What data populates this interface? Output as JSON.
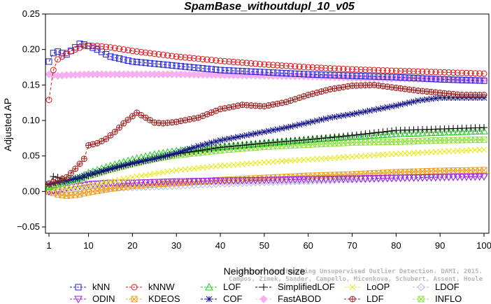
{
  "chart_data": {
    "type": "line",
    "title": "SpamBase_withoutdupl_10_v05",
    "xlabel": "Neighborhood size",
    "ylabel": "Adjusted AP",
    "xlim": [
      1,
      100
    ],
    "ylim": [
      -0.05,
      0.25
    ],
    "xticks": [
      "1",
      "10",
      "20",
      "30",
      "40",
      "50",
      "60",
      "70",
      "80",
      "90",
      "100"
    ],
    "yticks": [
      "−0.05",
      "0.00",
      "0.05",
      "0.10",
      "0.15",
      "0.20",
      "0.25"
    ],
    "grid": false,
    "legend_position": "bottom",
    "watermark_lines": [
      "Source: Benchmarking Unsupervised Outlier Detection. DAMI, 2015.",
      "Campos, Zimek, Sander, Campello, Micenkova, Schubert, Assent, Houle"
    ],
    "series": [
      {
        "name": "kNN",
        "color": "#1f1fd6",
        "marker": "square",
        "points": [
          [
            1,
            0.183
          ],
          [
            2,
            0.195
          ],
          [
            3,
            0.197
          ],
          [
            5,
            0.193
          ],
          [
            7,
            0.203
          ],
          [
            8,
            0.208
          ],
          [
            9,
            0.207
          ],
          [
            10,
            0.205
          ],
          [
            12,
            0.2
          ],
          [
            15,
            0.19
          ],
          [
            20,
            0.183
          ],
          [
            30,
            0.177
          ],
          [
            40,
            0.171
          ],
          [
            50,
            0.168
          ],
          [
            60,
            0.165
          ],
          [
            70,
            0.163
          ],
          [
            80,
            0.161
          ],
          [
            90,
            0.158
          ],
          [
            100,
            0.156
          ]
        ]
      },
      {
        "name": "kNNW",
        "color": "#e01818",
        "marker": "circle",
        "points": [
          [
            1,
            0.129
          ],
          [
            2,
            0.171
          ],
          [
            3,
            0.186
          ],
          [
            4,
            0.19
          ],
          [
            5,
            0.195
          ],
          [
            7,
            0.2
          ],
          [
            9,
            0.205
          ],
          [
            10,
            0.205
          ],
          [
            12,
            0.205
          ],
          [
            15,
            0.203
          ],
          [
            20,
            0.198
          ],
          [
            30,
            0.19
          ],
          [
            40,
            0.184
          ],
          [
            50,
            0.179
          ],
          [
            60,
            0.175
          ],
          [
            70,
            0.172
          ],
          [
            80,
            0.17
          ],
          [
            90,
            0.168
          ],
          [
            100,
            0.166
          ]
        ]
      },
      {
        "name": "LOF",
        "color": "#22cc22",
        "marker": "triangle-up",
        "points": [
          [
            1,
            0.007
          ],
          [
            3,
            0.012
          ],
          [
            5,
            0.015
          ],
          [
            8,
            0.02
          ],
          [
            10,
            0.026
          ],
          [
            15,
            0.036
          ],
          [
            20,
            0.045
          ],
          [
            25,
            0.052
          ],
          [
            30,
            0.057
          ],
          [
            40,
            0.063
          ],
          [
            50,
            0.068
          ],
          [
            60,
            0.073
          ],
          [
            70,
            0.077
          ],
          [
            80,
            0.081
          ],
          [
            90,
            0.083
          ],
          [
            100,
            0.085
          ]
        ]
      },
      {
        "name": "SimplifiedLOF",
        "color": "#000000",
        "marker": "plus",
        "points": [
          [
            1,
            0.01
          ],
          [
            2,
            0.021
          ],
          [
            3,
            0.02
          ],
          [
            5,
            0.016
          ],
          [
            8,
            0.018
          ],
          [
            10,
            0.022
          ],
          [
            15,
            0.031
          ],
          [
            20,
            0.039
          ],
          [
            25,
            0.046
          ],
          [
            30,
            0.053
          ],
          [
            40,
            0.062
          ],
          [
            50,
            0.068
          ],
          [
            60,
            0.073
          ],
          [
            70,
            0.079
          ],
          [
            80,
            0.086
          ],
          [
            90,
            0.088
          ],
          [
            100,
            0.09
          ]
        ]
      },
      {
        "name": "LoOP",
        "color": "#e8e81a",
        "marker": "x",
        "points": [
          [
            1,
            0.003
          ],
          [
            5,
            0.004
          ],
          [
            10,
            0.008
          ],
          [
            15,
            0.014
          ],
          [
            20,
            0.02
          ],
          [
            25,
            0.025
          ],
          [
            30,
            0.03
          ],
          [
            40,
            0.036
          ],
          [
            50,
            0.041
          ],
          [
            60,
            0.045
          ],
          [
            70,
            0.049
          ],
          [
            80,
            0.053
          ],
          [
            90,
            0.056
          ],
          [
            100,
            0.059
          ]
        ]
      },
      {
        "name": "LDOF",
        "color": "#b8b8e6",
        "marker": "diamond",
        "points": [
          [
            1,
            0.003
          ],
          [
            3,
            0.0
          ],
          [
            5,
            -0.002
          ],
          [
            8,
            0.002
          ],
          [
            10,
            0.004
          ],
          [
            15,
            0.005
          ],
          [
            20,
            0.006
          ],
          [
            30,
            0.008
          ],
          [
            40,
            0.011
          ],
          [
            50,
            0.013
          ],
          [
            60,
            0.015
          ],
          [
            70,
            0.017
          ],
          [
            80,
            0.019
          ],
          [
            90,
            0.021
          ],
          [
            100,
            0.022
          ]
        ]
      },
      {
        "name": "ODIN",
        "color": "#9a1ae0",
        "marker": "triangle-down",
        "points": [
          [
            1,
            0.0
          ],
          [
            3,
            0.002
          ],
          [
            5,
            0.005
          ],
          [
            8,
            0.008
          ],
          [
            10,
            0.01
          ],
          [
            15,
            0.012
          ],
          [
            20,
            0.012
          ],
          [
            30,
            0.014
          ],
          [
            40,
            0.015
          ],
          [
            50,
            0.016
          ],
          [
            60,
            0.017
          ],
          [
            70,
            0.018
          ],
          [
            80,
            0.019
          ],
          [
            90,
            0.02
          ],
          [
            100,
            0.021
          ]
        ]
      },
      {
        "name": "KDEOS",
        "color": "#f0a020",
        "marker": "square-x",
        "points": [
          [
            1,
            0.0
          ],
          [
            3,
            -0.004
          ],
          [
            5,
            -0.006
          ],
          [
            8,
            -0.004
          ],
          [
            10,
            -0.001
          ],
          [
            15,
            0.004
          ],
          [
            20,
            0.008
          ],
          [
            30,
            0.012
          ],
          [
            40,
            0.016
          ],
          [
            50,
            0.019
          ],
          [
            60,
            0.022
          ],
          [
            70,
            0.024
          ],
          [
            80,
            0.027
          ],
          [
            90,
            0.029
          ],
          [
            100,
            0.03
          ]
        ]
      },
      {
        "name": "COF",
        "color": "#10108a",
        "marker": "asterisk",
        "points": [
          [
            1,
            0.01
          ],
          [
            3,
            0.013
          ],
          [
            5,
            0.015
          ],
          [
            8,
            0.02
          ],
          [
            10,
            0.024
          ],
          [
            15,
            0.032
          ],
          [
            20,
            0.04
          ],
          [
            25,
            0.046
          ],
          [
            30,
            0.054
          ],
          [
            35,
            0.064
          ],
          [
            40,
            0.072
          ],
          [
            45,
            0.078
          ],
          [
            50,
            0.084
          ],
          [
            55,
            0.09
          ],
          [
            60,
            0.097
          ],
          [
            65,
            0.104
          ],
          [
            70,
            0.109
          ],
          [
            75,
            0.115
          ],
          [
            80,
            0.121
          ],
          [
            85,
            0.128
          ],
          [
            90,
            0.132
          ],
          [
            95,
            0.132
          ],
          [
            100,
            0.132
          ]
        ]
      },
      {
        "name": "FastABOD",
        "color": "#f5b0f0",
        "marker": "diamond-filled",
        "points": [
          [
            1,
            0.165
          ],
          [
            3,
            0.163
          ],
          [
            5,
            0.164
          ],
          [
            10,
            0.165
          ],
          [
            20,
            0.165
          ],
          [
            30,
            0.165
          ],
          [
            40,
            0.164
          ],
          [
            50,
            0.163
          ],
          [
            60,
            0.162
          ],
          [
            70,
            0.16
          ],
          [
            80,
            0.159
          ],
          [
            90,
            0.158
          ],
          [
            100,
            0.157
          ]
        ]
      },
      {
        "name": "LDF",
        "color": "#a02020",
        "marker": "circle-plus",
        "points": [
          [
            1,
            0.011
          ],
          [
            3,
            0.015
          ],
          [
            5,
            0.02
          ],
          [
            7,
            0.032
          ],
          [
            9,
            0.046
          ],
          [
            10,
            0.065
          ],
          [
            12,
            0.068
          ],
          [
            14,
            0.074
          ],
          [
            16,
            0.084
          ],
          [
            18,
            0.096
          ],
          [
            20,
            0.106
          ],
          [
            21,
            0.111
          ],
          [
            23,
            0.104
          ],
          [
            25,
            0.097
          ],
          [
            27,
            0.096
          ],
          [
            30,
            0.098
          ],
          [
            35,
            0.104
          ],
          [
            40,
            0.116
          ],
          [
            45,
            0.122
          ],
          [
            50,
            0.12
          ],
          [
            55,
            0.126
          ],
          [
            60,
            0.136
          ],
          [
            65,
            0.144
          ],
          [
            70,
            0.149
          ],
          [
            75,
            0.15
          ],
          [
            80,
            0.146
          ],
          [
            85,
            0.142
          ],
          [
            90,
            0.139
          ],
          [
            95,
            0.136
          ],
          [
            100,
            0.136
          ]
        ]
      },
      {
        "name": "INFLO",
        "color": "#90e040",
        "marker": "hourglass",
        "points": [
          [
            1,
            0.006
          ],
          [
            3,
            0.01
          ],
          [
            5,
            0.012
          ],
          [
            8,
            0.017
          ],
          [
            10,
            0.022
          ],
          [
            15,
            0.031
          ],
          [
            20,
            0.039
          ],
          [
            25,
            0.046
          ],
          [
            30,
            0.051
          ],
          [
            40,
            0.058
          ],
          [
            50,
            0.063
          ],
          [
            60,
            0.066
          ],
          [
            70,
            0.069
          ],
          [
            80,
            0.07
          ],
          [
            90,
            0.072
          ],
          [
            100,
            0.073
          ]
        ]
      }
    ]
  }
}
